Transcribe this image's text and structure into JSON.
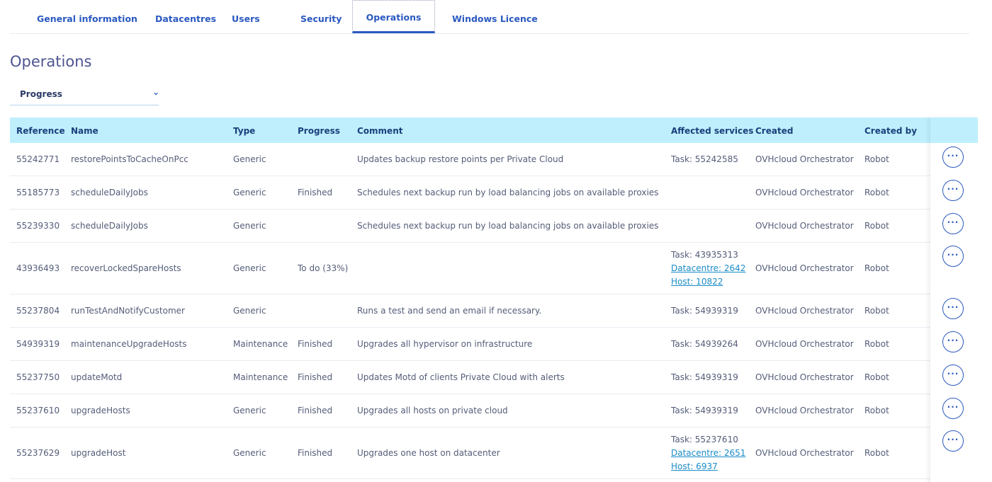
{
  "tabs": [
    {
      "label": "General information",
      "active": false
    },
    {
      "label": "Datacentres",
      "active": false
    },
    {
      "label": "Users",
      "active": false
    },
    {
      "label": "Security",
      "active": false
    },
    {
      "label": "Operations",
      "active": true
    },
    {
      "label": "Windows Licence",
      "active": false
    }
  ],
  "page": {
    "title": "Operations"
  },
  "filter": {
    "selected": "Progress",
    "icon": "chevron-down-icon"
  },
  "table": {
    "columns": [
      "Reference",
      "Name",
      "Type",
      "Progress",
      "Comment",
      "Affected services",
      "Created",
      "Created by"
    ],
    "rows": [
      {
        "reference": "55242771",
        "name": "restorePointsToCacheOnPcc",
        "type": "Generic",
        "progress": "",
        "comment": "Updates backup restore points per Private Cloud",
        "services": [
          "Task: 55242585"
        ],
        "created": "OVHcloud Orchestrator",
        "created_by": "Robot"
      },
      {
        "reference": "55185773",
        "name": "scheduleDailyJobs",
        "type": "Generic",
        "progress": "Finished",
        "comment": "Schedules next backup run by load balancing jobs on available proxies",
        "services": [],
        "created": "OVHcloud Orchestrator",
        "created_by": "Robot"
      },
      {
        "reference": "55239330",
        "name": "scheduleDailyJobs",
        "type": "Generic",
        "progress": "",
        "comment": "Schedules next backup run by load balancing jobs on available proxies",
        "services": [],
        "created": "OVHcloud Orchestrator",
        "created_by": "Robot"
      },
      {
        "reference": "43936493",
        "name": "recoverLockedSpareHosts",
        "type": "Generic",
        "progress": "To do (33%)",
        "comment": "",
        "services": [
          "Task: 43935313",
          "Datacentre: 2642",
          "Host: 10822"
        ],
        "created": "OVHcloud Orchestrator",
        "created_by": "Robot"
      },
      {
        "reference": "55237804",
        "name": "runTestAndNotifyCustomer",
        "type": "Generic",
        "progress": "",
        "comment": "Runs a test and send an email if necessary.",
        "services": [
          "Task: 54939319"
        ],
        "created": "OVHcloud Orchestrator",
        "created_by": "Robot"
      },
      {
        "reference": "54939319",
        "name": "maintenanceUpgradeHosts",
        "type": "Maintenance",
        "progress": "Finished",
        "comment": "Upgrades all hypervisor on infrastructure",
        "services": [
          "Task: 54939264"
        ],
        "created": "OVHcloud Orchestrator",
        "created_by": "Robot"
      },
      {
        "reference": "55237750",
        "name": "updateMotd",
        "type": "Maintenance",
        "progress": "Finished",
        "comment": "Updates Motd of clients Private Cloud with alerts",
        "services": [
          "Task: 54939319"
        ],
        "created": "OVHcloud Orchestrator",
        "created_by": "Robot"
      },
      {
        "reference": "55237610",
        "name": "upgradeHosts",
        "type": "Generic",
        "progress": "Finished",
        "comment": "Upgrades all hosts on private cloud",
        "services": [
          "Task: 54939319"
        ],
        "created": "OVHcloud Orchestrator",
        "created_by": "Robot"
      },
      {
        "reference": "55237629",
        "name": "upgradeHost",
        "type": "Generic",
        "progress": "Finished",
        "comment": "Upgrades one host on datacenter",
        "services": [
          "Task: 55237610",
          "Datacentre: 2651",
          "Host: 6937"
        ],
        "created": "OVHcloud Orchestrator",
        "created_by": "Robot"
      }
    ],
    "action_label": "···"
  },
  "colors": {
    "accent": "#2a59c0",
    "header_bg": "#bfeffc",
    "link": "#1a8bc7",
    "text": "#545d78",
    "title": "#4d5592"
  }
}
